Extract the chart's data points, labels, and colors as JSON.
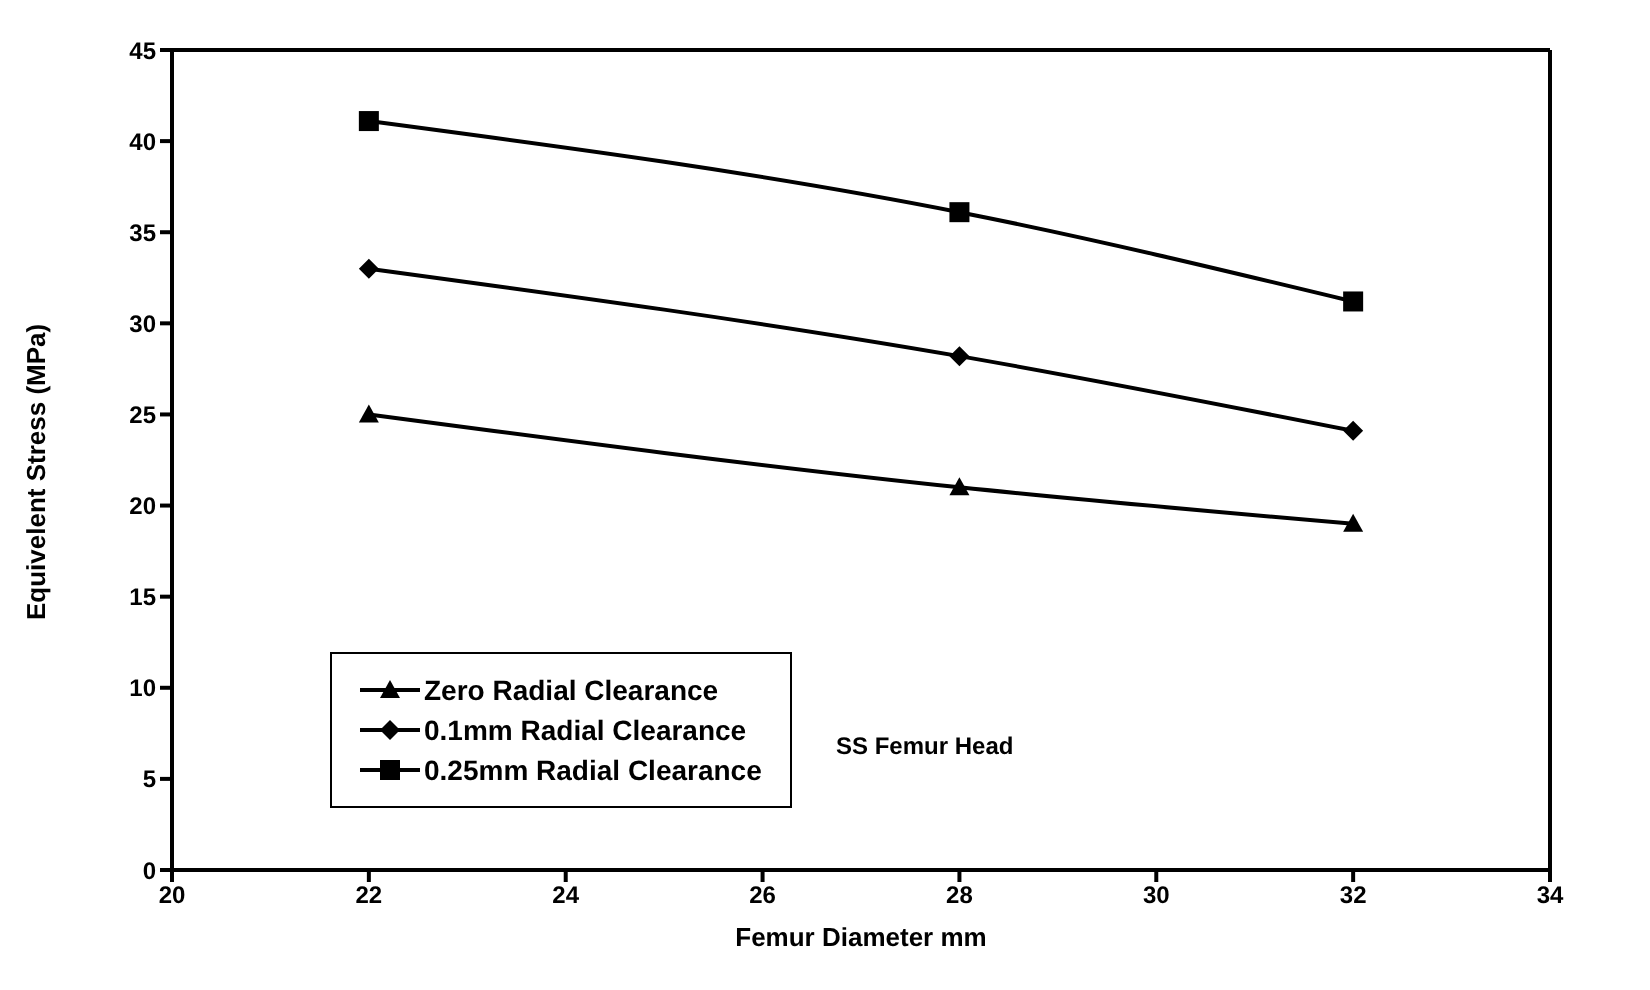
{
  "chart_data": {
    "type": "line",
    "xlabel": "Femur Diameter mm",
    "ylabel": "Equivelent Stress (MPa)",
    "x": [
      22,
      28,
      32
    ],
    "series": [
      {
        "name": "Zero Radial Clearance",
        "color": "#000000",
        "marker": "triangle",
        "values": [
          25,
          21,
          19
        ]
      },
      {
        "name": "0.1mm Radial Clearance",
        "color": "#000000",
        "marker": "diamond",
        "values": [
          33,
          28.2,
          24.1
        ]
      },
      {
        "name": "0.25mm Radial Clearance",
        "color": "#000000",
        "marker": "square",
        "values": [
          41.1,
          36.1,
          31.2
        ]
      }
    ],
    "xlim": [
      20,
      34
    ],
    "xticks": [
      20,
      22,
      24,
      26,
      28,
      30,
      32,
      34
    ],
    "ylim": [
      0,
      45
    ],
    "yticks": [
      0,
      5,
      10,
      15,
      20,
      25,
      30,
      35,
      40,
      45
    ],
    "legend": "bottom left",
    "line_style": "solid",
    "annotations": [
      "SS Femur Head"
    ]
  }
}
